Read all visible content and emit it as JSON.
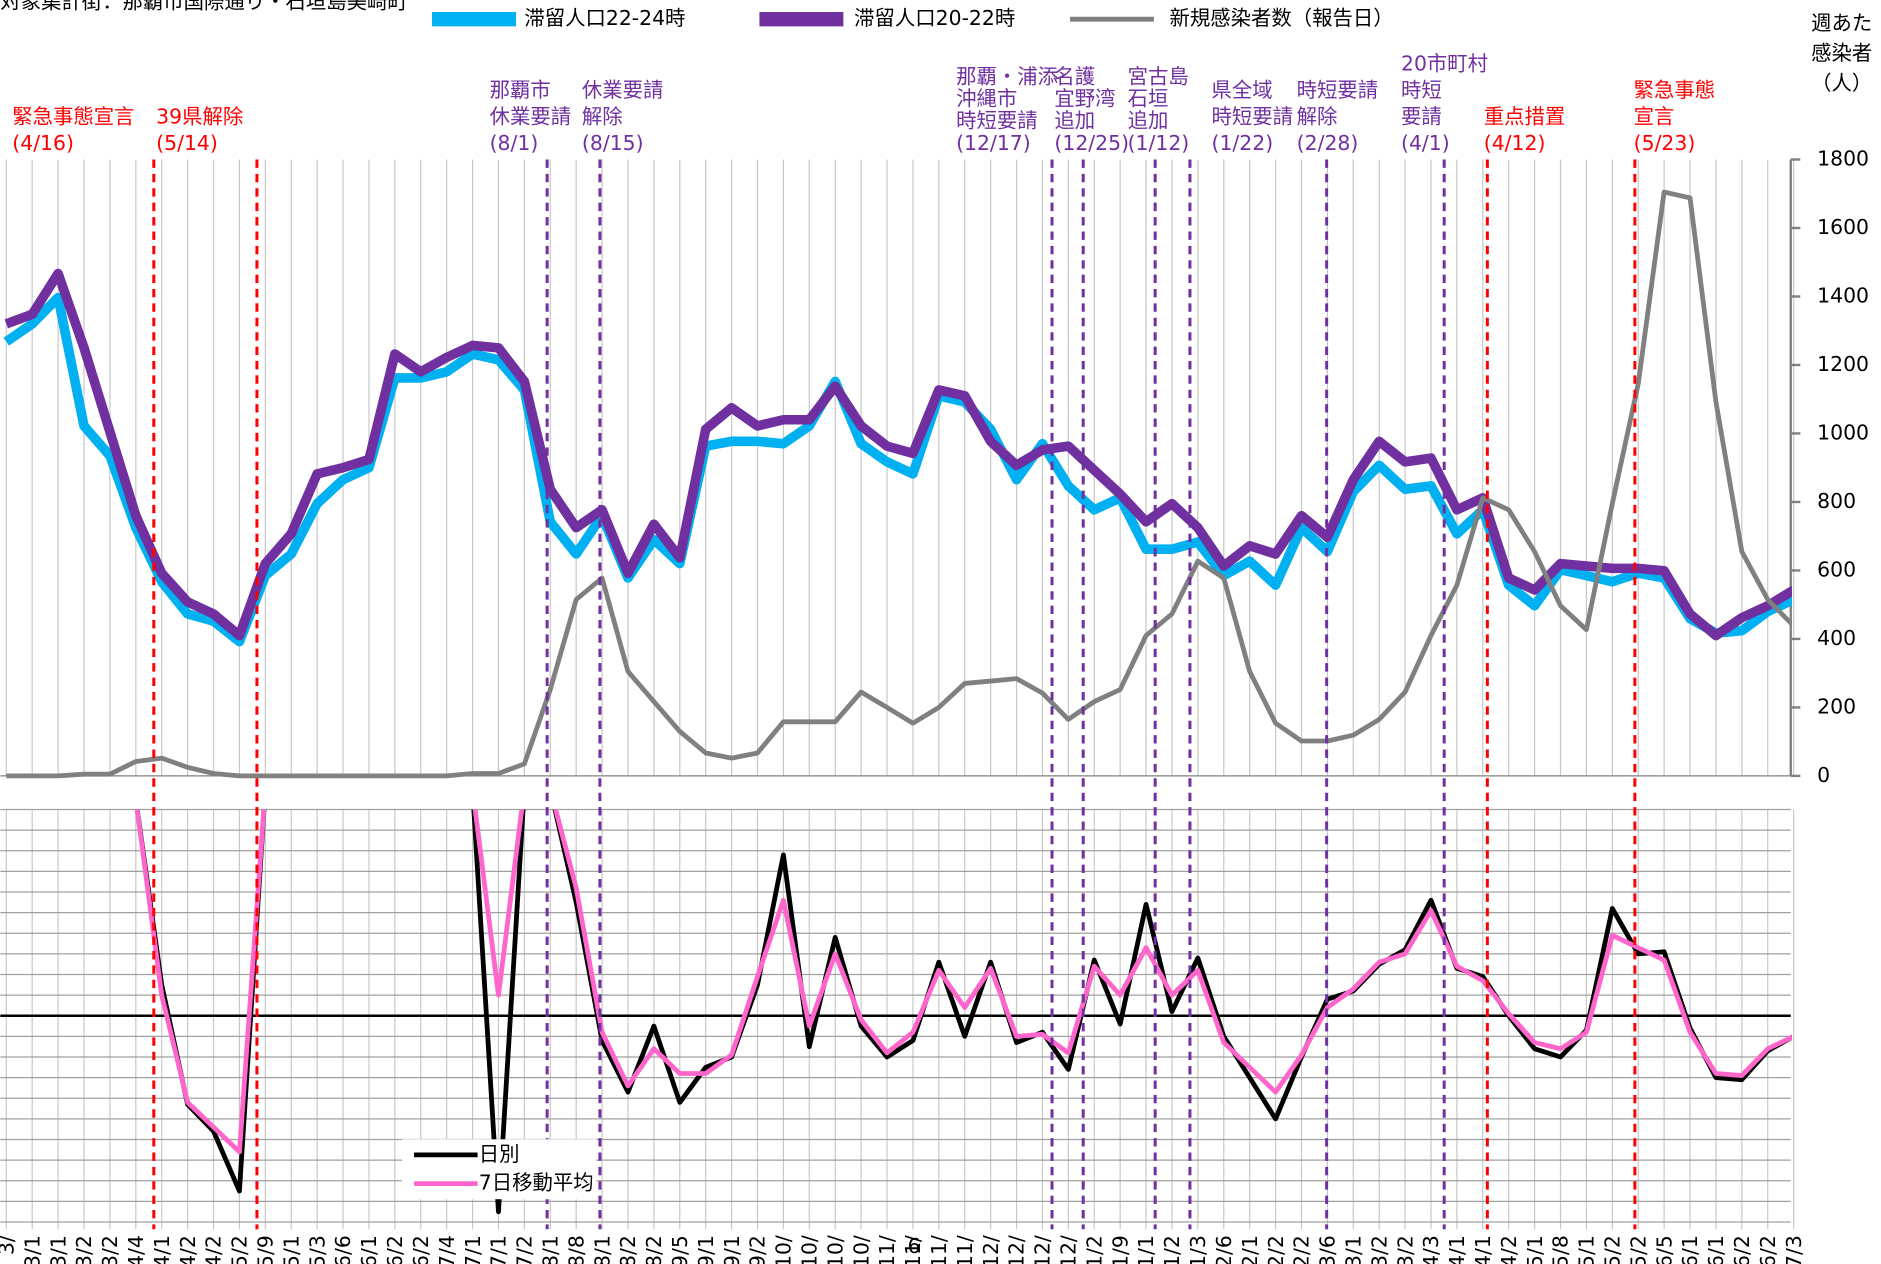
{
  "chart_data": [
    {
      "type": "line",
      "subtitle": "対象集計街：那覇市国際通り・石垣島美崎町",
      "ylabel": [
        "週あた",
        "感染者",
        "（人）"
      ],
      "page_number": "6",
      "ylim": [
        0,
        1800
      ],
      "yticks": [
        0,
        200,
        400,
        600,
        800,
        1000,
        1200,
        1400,
        1600,
        1800
      ],
      "categories": [
        "3/",
        "3/1",
        "3/1",
        "3/2",
        "3/2",
        "4/4",
        "4/1",
        "4/2",
        "4/2",
        "5/2",
        "5/9",
        "5/1",
        "5/3",
        "6/6",
        "6/1",
        "6/2",
        "6/2",
        "7/4",
        "7/1",
        "7/1",
        "7/2",
        "8/1",
        "8/8",
        "8/1",
        "8/2",
        "8/2",
        "9/5",
        "9/1",
        "9/1",
        "9/2",
        "10/",
        "10/",
        "10/",
        "10/",
        "11/",
        "11/",
        "11/",
        "11/",
        "12/",
        "12/",
        "12/",
        "12/",
        "1/2",
        "1/9",
        "1/1",
        "1/2",
        "1/3",
        "2/6",
        "2/1",
        "2/2",
        "2/2",
        "3/6",
        "3/1",
        "3/2",
        "3/2",
        "4/3",
        "4/1",
        "4/1",
        "4/2",
        "5/1",
        "5/8",
        "5/1",
        "5/2",
        "5/2",
        "6/5",
        "6/1",
        "6/1",
        "6/2",
        "6/2",
        "7/3"
      ],
      "series": [
        {
          "name": "滞留人口22-24時",
          "color": "#00b0f0",
          "values": [
            1268,
            1320,
            1397,
            1022,
            935,
            725,
            567,
            473,
            452,
            392,
            585,
            648,
            795,
            865,
            900,
            1162,
            1162,
            1180,
            1232,
            1215,
            1127,
            742,
            648,
            760,
            578,
            690,
            620,
            963,
            977,
            977,
            970,
            1022,
            1152,
            970,
            917,
            882,
            1110,
            1092,
            1012,
            865,
            970,
            847,
            777,
            812,
            662,
            662,
            683,
            585,
            627,
            557,
            725,
            655,
            830,
            907,
            837,
            847,
            707,
            777,
            557,
            497,
            602,
            585,
            567,
            592,
            578,
            459,
            417,
            424,
            480,
            515
          ]
        },
        {
          "name": "滞留人口20-22時",
          "color": "#7030a0",
          "values": [
            1320,
            1348,
            1467,
            1250,
            1005,
            760,
            592,
            508,
            473,
            410,
            620,
            707,
            882,
            900,
            924,
            1232,
            1180,
            1222,
            1257,
            1250,
            1152,
            837,
            725,
            777,
            592,
            735,
            637,
            1012,
            1075,
            1022,
            1040,
            1040,
            1138,
            1022,
            963,
            942,
            1127,
            1110,
            977,
            907,
            952,
            963,
            893,
            823,
            742,
            795,
            725,
            613,
            672,
            648,
            760,
            697,
            865,
            977,
            917,
            928,
            777,
            812,
            578,
            543,
            620,
            613,
            606,
            606,
            599,
            473,
            410,
            462,
            497,
            543
          ]
        },
        {
          "name": "新規感染者数（報告日）",
          "color": "#808080",
          "values": [
            0,
            0,
            0,
            5,
            5,
            42,
            52,
            25,
            7,
            0,
            0,
            0,
            0,
            0,
            0,
            0,
            0,
            0,
            7,
            7,
            35,
            252,
            515,
            578,
            305,
            217,
            130,
            67,
            52,
            67,
            158,
            158,
            158,
            245,
            200,
            154,
            200,
            270,
            277,
            284,
            242,
            165,
            217,
            252,
            410,
            473,
            627,
            578,
            305,
            154,
            102,
            102,
            119,
            165,
            245,
            410,
            557,
            812,
            777,
            655,
            497,
            427,
            795,
            1145,
            1705,
            1688,
            1092,
            655,
            515,
            438
          ]
        }
      ],
      "annotations": [
        {
          "lines": [
            "緊急事態宣言",
            "(4/16)"
          ],
          "color": "#ff0000"
        },
        {
          "lines": [
            "39県解除",
            "(5/14)"
          ],
          "color": "#ff0000"
        },
        {
          "lines": [
            "那覇市",
            "休業要請",
            "(8/1)"
          ],
          "color": "#7030a0"
        },
        {
          "lines": [
            "休業要請",
            "解除",
            "(8/15)"
          ],
          "color": "#7030a0"
        },
        {
          "lines": [
            "那覇・浦添",
            "沖縄市",
            "時短要請",
            "(12/17)"
          ],
          "color": "#7030a0"
        },
        {
          "lines": [
            "名護",
            "宜野湾",
            "追加",
            "(12/25)"
          ],
          "color": "#7030a0"
        },
        {
          "lines": [
            "宮古島",
            "石垣",
            "追加",
            "(1/12)"
          ],
          "color": "#7030a0"
        },
        {
          "lines": [
            "県全域",
            "時短要請",
            "(1/22)"
          ],
          "color": "#7030a0"
        },
        {
          "lines": [
            "時短要請",
            "解除",
            "(2/28)"
          ],
          "color": "#7030a0"
        },
        {
          "lines": [
            "20市町村",
            "時短",
            "要請",
            "(4/1)"
          ],
          "color": "#7030a0"
        },
        {
          "lines": [
            "重点措置",
            "(4/12)"
          ],
          "color": "#ff0000"
        },
        {
          "lines": [
            "緊急事態",
            "宣言",
            "(5/23)"
          ],
          "color": "#ff0000"
        }
      ]
    },
    {
      "type": "line",
      "ylim": [
        -10,
        10
      ],
      "yticks": [
        -10,
        -9,
        -8,
        -7,
        -6,
        -5,
        -4,
        -3,
        -2,
        -1,
        0,
        1,
        2,
        3,
        4,
        5,
        6,
        7,
        8,
        9,
        10
      ],
      "series": [
        {
          "name": "日別",
          "color": "#000000",
          "values": [
            null,
            null,
            null,
            null,
            11,
            10.5,
            1.5,
            -4.3,
            -5.6,
            -8.5,
            11,
            11,
            null,
            null,
            null,
            null,
            null,
            null,
            11,
            -9.5,
            11,
            11,
            5.5,
            -1.2,
            -3.7,
            -0.5,
            -4.2,
            -2.5,
            -2.0,
            1.5,
            7.8,
            -1.5,
            3.8,
            -0.5,
            -2.0,
            -1.2,
            2.6,
            -1.0,
            2.6,
            -1.3,
            -0.8,
            -2.6,
            2.7,
            -0.4,
            5.4,
            0.2,
            2.8,
            -1.0,
            -3.0,
            -5.0,
            -2.0,
            0.8,
            1.2,
            2.5,
            3.2,
            5.6,
            2.3,
            1.9,
            0.0,
            -1.6,
            -2.0,
            -0.7,
            5.2,
            3.0,
            3.1,
            -0.6,
            -3.0,
            -3.1,
            -1.7,
            -1.0
          ]
        },
        {
          "name": "7日移動平均",
          "color": "#ff66cc",
          "values": [
            null,
            null,
            null,
            null,
            11,
            10.5,
            1.0,
            -4.2,
            -5.4,
            -6.6,
            11,
            11,
            null,
            null,
            null,
            null,
            null,
            null,
            11,
            1.0,
            11,
            11,
            6.2,
            -0.8,
            -3.4,
            -1.6,
            -2.8,
            -2.8,
            -1.9,
            1.9,
            5.6,
            -0.5,
            3.0,
            -0.2,
            -1.8,
            -0.8,
            2.2,
            0.4,
            2.3,
            -1.0,
            -0.9,
            -1.8,
            2.4,
            1.0,
            3.3,
            1.0,
            2.2,
            -1.3,
            -2.5,
            -3.7,
            -1.9,
            0.4,
            1.3,
            2.6,
            3.0,
            5.1,
            2.4,
            1.7,
            0.1,
            -1.3,
            -1.6,
            -0.8,
            3.9,
            3.3,
            2.7,
            -0.8,
            -2.8,
            -2.9,
            -1.6,
            -1.0
          ]
        }
      ]
    }
  ]
}
